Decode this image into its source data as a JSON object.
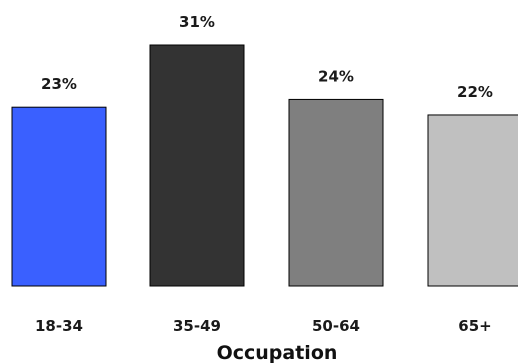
{
  "chart_data": {
    "type": "bar",
    "categories": [
      "18-34",
      "35-49",
      "50-64",
      "65+"
    ],
    "values": [
      23,
      31,
      24,
      22
    ],
    "data_labels": [
      "23%",
      "31%",
      "24%",
      "22%"
    ],
    "colors": [
      "#3a60ff",
      "#333333",
      "#7f7f7f",
      "#c0c0c0"
    ],
    "xlabel": "Occupation",
    "ylabel": "",
    "ylim": [
      0,
      31
    ],
    "grid": false,
    "legend": "none"
  }
}
